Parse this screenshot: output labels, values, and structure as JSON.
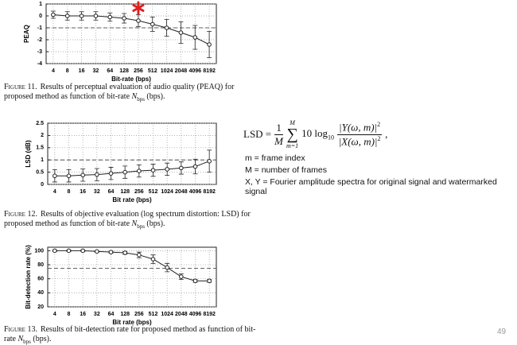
{
  "chart_data": [
    {
      "type": "line",
      "y_label": "PEAQ",
      "x_label": "Bit-rate (bps)",
      "categories": [
        "4",
        "8",
        "16",
        "32",
        "64",
        "128",
        "256",
        "512",
        "1024",
        "2048",
        "4096",
        "8192"
      ],
      "values": [
        0.1,
        0.0,
        0.0,
        0.0,
        -0.1,
        -0.2,
        -0.4,
        -0.7,
        -1.0,
        -1.4,
        -1.8,
        -2.4
      ],
      "errors": [
        0.3,
        0.35,
        0.35,
        0.35,
        0.35,
        0.4,
        0.5,
        0.6,
        0.7,
        0.9,
        1.0,
        1.1
      ],
      "color": "#222222",
      "ylim": [
        -4,
        1
      ],
      "yticks": [
        -4,
        -3,
        -2,
        -1,
        0,
        1
      ],
      "hline": -1,
      "grid": true
    },
    {
      "type": "line",
      "y_label": "LSD (dB)",
      "x_label": "Bit rate (bps)",
      "categories": [
        "4",
        "8",
        "16",
        "32",
        "64",
        "128",
        "256",
        "512",
        "1024",
        "2048",
        "4096",
        "8192"
      ],
      "values": [
        0.35,
        0.35,
        0.38,
        0.4,
        0.45,
        0.5,
        0.55,
        0.58,
        0.62,
        0.67,
        0.73,
        0.95
      ],
      "errors": [
        0.25,
        0.25,
        0.25,
        0.25,
        0.25,
        0.25,
        0.25,
        0.25,
        0.25,
        0.25,
        0.3,
        0.45
      ],
      "color": "#222222",
      "ylim": [
        0,
        2.5
      ],
      "yticks": [
        0,
        0.5,
        1,
        1.5,
        2,
        2.5
      ],
      "hline": 1,
      "grid": true
    },
    {
      "type": "line",
      "y_label": "Bit-detection rate (%)",
      "x_label": "Bit rate (bps)",
      "categories": [
        "4",
        "8",
        "16",
        "32",
        "64",
        "128",
        "256",
        "512",
        "1024",
        "2048",
        "4096",
        "8192"
      ],
      "values": [
        100,
        100,
        100,
        99,
        98,
        97,
        94,
        88,
        76,
        63,
        57,
        57
      ],
      "errors": [
        1,
        1,
        1,
        1,
        1.5,
        2,
        4,
        6,
        6,
        4,
        2,
        2
      ],
      "color": "#222222",
      "ylim": [
        20,
        105
      ],
      "yticks": [
        20,
        40,
        60,
        80,
        100
      ],
      "hline": 75,
      "grid": true
    }
  ],
  "captions": [
    {
      "label": "Figure 11.",
      "text": "Results of perceptual evaluation of audio quality (PEAQ) for proposed method as function of bit-rate ",
      "var": "N",
      "sub": "bps",
      "tail": " (bps)."
    },
    {
      "label": "Figure 12.",
      "text": "Results of objective evaluation (log spectrum distortion: LSD) for proposed method as function of bit-rate ",
      "var": "N",
      "sub": "bps",
      "tail": " (bps)."
    },
    {
      "label": "Figure 13.",
      "text": "Results of bit-detection rate for proposed method as function of bit-rate ",
      "var": "N",
      "sub": "bps",
      "tail": " (bps)."
    }
  ],
  "formula": {
    "lhs": "LSD =",
    "frac_num": "1",
    "frac_den": "M",
    "sum_top": "M",
    "sum_sign": "∑",
    "sum_bottom": "m=1",
    "term": "10 log",
    "log_sub": "10",
    "num": "|Y(ω, m)|",
    "num_sup": "2",
    "den": "|X(ω, m)|",
    "den_sup": "2",
    "tail": ","
  },
  "notes": [
    "m = frame index",
    "M = number of frames",
    "X, Y = Fourier amplitude spectra for original signal and watermarked signal"
  ],
  "page_number": "49"
}
